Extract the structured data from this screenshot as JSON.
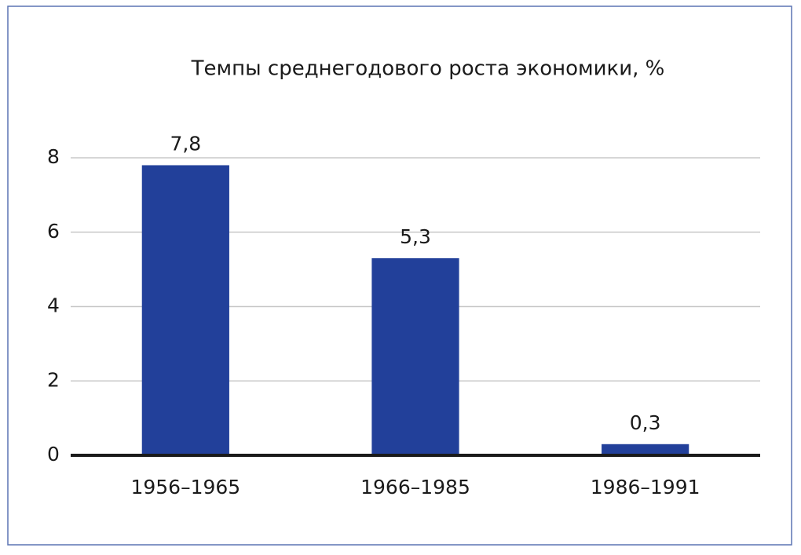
{
  "chart_data": {
    "type": "bar",
    "title": "Темпы среднегодового роста экономики, %",
    "categories": [
      "1956–1965",
      "1966–1985",
      "1986–1991"
    ],
    "values": [
      7.8,
      5.3,
      0.3
    ],
    "value_labels": [
      "7,8",
      "5,3",
      "0,3"
    ],
    "color": "#22409a",
    "ylim": [
      0,
      8
    ],
    "yticks": [
      0,
      2,
      4,
      6,
      8
    ],
    "grid": true
  }
}
